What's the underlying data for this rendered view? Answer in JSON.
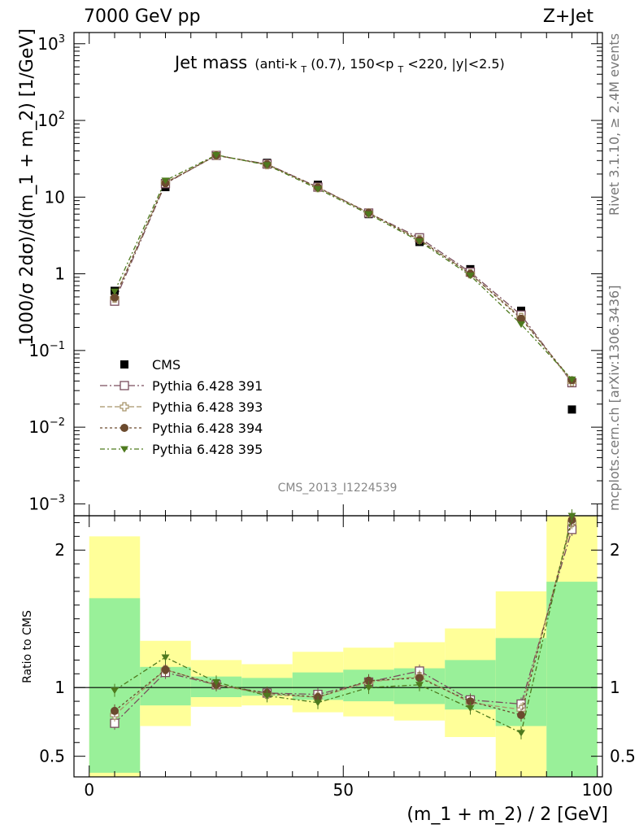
{
  "header": {
    "left": "7000 GeV pp",
    "right": "Z+Jet"
  },
  "title": {
    "main": "Jet mass",
    "details": "(anti-k",
    "sub1": "T",
    "details2": "(0.7), 150<p",
    "sub2": "T",
    "details3": "<220, |y|<2.5)"
  },
  "side_notes": {
    "rivet": "Rivet 3.1.10, ≥ 2.4M events",
    "mcplots": "mcplots.cern.ch [arXiv:1306.3436]"
  },
  "analysis_id": "CMS_2013_I1224539",
  "colors": {
    "cms": "#000000",
    "p391": "#7a4e5e",
    "p393": "#a8956a",
    "p394": "#6b4a2e",
    "p395": "#4e7a1e",
    "band_inner": "#99f099",
    "band_outer": "#ffff99"
  },
  "chart_data": [
    {
      "type": "line",
      "panel": "main",
      "ylabel": "1000/σ 2dσ)/d(m_1 + m_2) [1/GeV]",
      "yscale": "log",
      "ylim": [
        0.0007,
        1400
      ],
      "xlim": [
        -3,
        101
      ],
      "yticks": [
        {
          "v": 0.001,
          "label": "10",
          "sup": "−3"
        },
        {
          "v": 0.01,
          "label": "10",
          "sup": "−2"
        },
        {
          "v": 0.1,
          "label": "10",
          "sup": "−1"
        },
        {
          "v": 1,
          "label": "1",
          "sup": ""
        },
        {
          "v": 10,
          "label": "10",
          "sup": ""
        },
        {
          "v": 100,
          "label": "10",
          "sup": "2"
        },
        {
          "v": 1000,
          "label": "10",
          "sup": "3"
        }
      ],
      "x": [
        5,
        15,
        25,
        35,
        45,
        55,
        65,
        75,
        85,
        95
      ],
      "series": [
        {
          "name": "CMS",
          "key": "cms",
          "values": [
            0.6,
            13.5,
            35,
            28,
            14.5,
            6.0,
            2.6,
            1.15,
            0.33,
            0.017
          ]
        },
        {
          "name": "Pythia 6.428 391",
          "key": "p391",
          "values": [
            0.44,
            15,
            35,
            27,
            13.5,
            6.2,
            2.95,
            1.05,
            0.29,
            0.038
          ]
        },
        {
          "name": "Pythia 6.428 393",
          "key": "p393",
          "values": [
            0.48,
            15.5,
            35,
            26.5,
            13.3,
            6.2,
            2.8,
            1.0,
            0.27,
            0.039
          ]
        },
        {
          "name": "Pythia 6.428 394",
          "key": "p394",
          "values": [
            0.49,
            15.2,
            35,
            26.8,
            13.4,
            6.25,
            2.75,
            1.0,
            0.26,
            0.041
          ]
        },
        {
          "name": "Pythia 6.428 395",
          "key": "p395",
          "values": [
            0.59,
            16.5,
            35.5,
            26.2,
            12.8,
            6.0,
            2.65,
            0.95,
            0.22,
            0.042
          ]
        }
      ]
    },
    {
      "type": "line",
      "panel": "ratio",
      "xlabel": "(m_1 + m_2) / 2 [GeV]",
      "ylabel": "Ratio to CMS",
      "ylim": [
        0.35,
        2.25
      ],
      "xlim": [
        -3,
        101
      ],
      "yticks": [
        0.5,
        1,
        2
      ],
      "xticks": [
        0,
        50,
        100
      ],
      "x": [
        5,
        15,
        25,
        35,
        45,
        55,
        65,
        75,
        85,
        95
      ],
      "bins": [
        [
          0,
          10
        ],
        [
          10,
          20
        ],
        [
          20,
          30
        ],
        [
          30,
          40
        ],
        [
          40,
          50
        ],
        [
          50,
          60
        ],
        [
          60,
          70
        ],
        [
          70,
          80
        ],
        [
          80,
          90
        ],
        [
          90,
          100
        ]
      ],
      "band_inner": [
        [
          0.38,
          1.65
        ],
        [
          0.87,
          1.15
        ],
        [
          0.93,
          1.08
        ],
        [
          0.94,
          1.07
        ],
        [
          0.91,
          1.11
        ],
        [
          0.9,
          1.13
        ],
        [
          0.88,
          1.14
        ],
        [
          0.84,
          1.2
        ],
        [
          0.72,
          1.36
        ],
        [
          0.35,
          1.77
        ]
      ],
      "band_outer": [
        [
          0.35,
          2.1
        ],
        [
          0.72,
          1.34
        ],
        [
          0.86,
          1.2
        ],
        [
          0.87,
          1.17
        ],
        [
          0.82,
          1.26
        ],
        [
          0.79,
          1.29
        ],
        [
          0.76,
          1.33
        ],
        [
          0.64,
          1.43
        ],
        [
          0.35,
          1.7
        ],
        [
          0.35,
          2.25
        ]
      ],
      "series": [
        {
          "name": "Pythia 6.428 391",
          "key": "p391",
          "values": [
            0.74,
            1.11,
            1.02,
            0.96,
            0.95,
            1.04,
            1.12,
            0.91,
            0.88,
            2.15
          ]
        },
        {
          "name": "Pythia 6.428 393",
          "key": "p393",
          "values": [
            0.8,
            1.13,
            1.02,
            0.95,
            0.93,
            1.04,
            1.08,
            0.89,
            0.84,
            2.2
          ]
        },
        {
          "name": "Pythia 6.428 394",
          "key": "p394",
          "values": [
            0.83,
            1.13,
            1.02,
            0.96,
            0.93,
            1.05,
            1.07,
            0.9,
            0.8,
            2.22
          ]
        },
        {
          "name": "Pythia 6.428 395",
          "key": "p395",
          "values": [
            0.98,
            1.22,
            1.04,
            0.94,
            0.89,
            1.0,
            1.02,
            0.85,
            0.67,
            2.25
          ]
        }
      ]
    }
  ]
}
